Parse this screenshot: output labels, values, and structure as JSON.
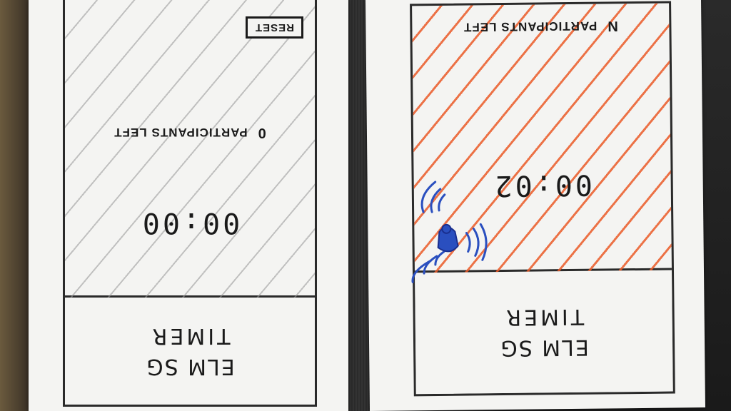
{
  "screens": [
    {
      "id": "finished",
      "app_name": "ELM SG",
      "app_sub": "TIMER",
      "timer": "00:00",
      "participants_count": "0",
      "participants_label": "PARTICIPANTS LEFT",
      "reset_label": "RESET",
      "hatch_color": "#969696"
    },
    {
      "id": "running",
      "app_name": "ELM SG",
      "app_sub": "TIMER",
      "timer": "00:02",
      "participants_count": "N",
      "participants_label": "PARTICIPANTS LEFT",
      "hatch_color": "#ea5a28",
      "tap_icon": "tap-gesture-icon",
      "tap_color": "#2a4fbf"
    }
  ]
}
